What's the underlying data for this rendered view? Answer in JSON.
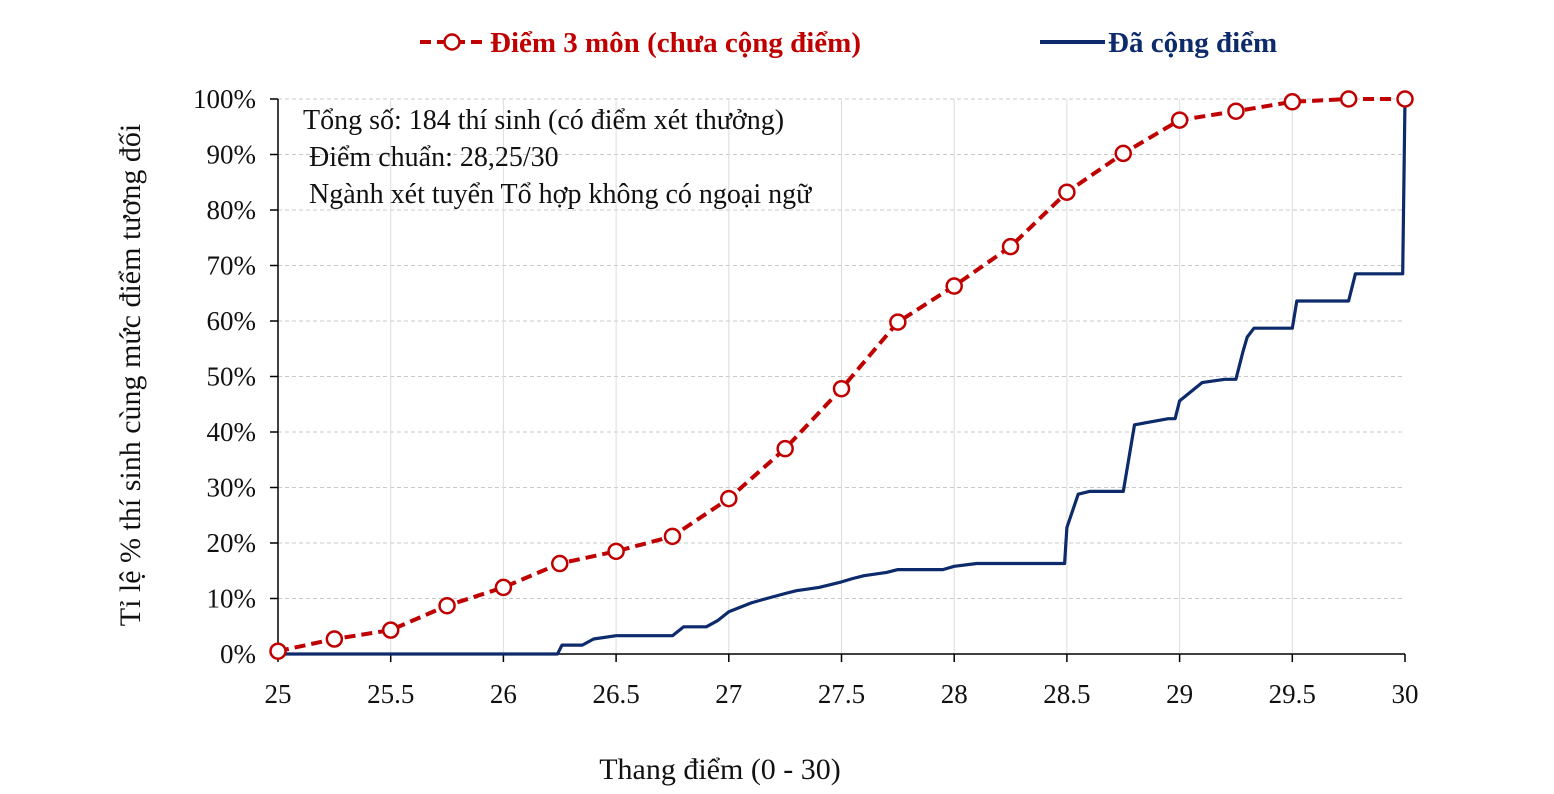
{
  "chart_data": {
    "type": "line",
    "title": "",
    "xlabel": "Thang điểm (0 - 30)",
    "ylabel": "Tỉ lệ % thí sinh cùng mức điểm tương đối",
    "xlim": [
      25,
      30
    ],
    "ylim": [
      0,
      100
    ],
    "x_ticks": [
      "25",
      "25.5",
      "26",
      "26.5",
      "27",
      "27.5",
      "28",
      "28.5",
      "29",
      "29.5",
      "30"
    ],
    "y_ticks": [
      "0%",
      "10%",
      "20%",
      "30%",
      "40%",
      "50%",
      "60%",
      "70%",
      "80%",
      "90%",
      "100%"
    ],
    "grid": "horizontal dashed",
    "legend_position": "top",
    "annotations": [
      "Tổng số: 184 thí sinh  (có điểm xét thưởng)",
      "Điểm chuẩn: 28,25/30",
      "Ngành xét tuyển Tổ hợp không có ngoại ngữ"
    ],
    "series": [
      {
        "name": "Điểm 3 môn (chưa cộng điểm)",
        "color": "#c00000",
        "style": "dashed line with open circle markers",
        "x": [
          25,
          25.25,
          25.5,
          25.75,
          26,
          26.25,
          26.5,
          26.75,
          27,
          27.25,
          27.5,
          27.75,
          28,
          28.25,
          28.5,
          28.75,
          29,
          29.25,
          29.5,
          29.75,
          30
        ],
        "y": [
          0.5,
          2.7,
          4.3,
          8.7,
          12.0,
          16.3,
          18.5,
          21.2,
          28.0,
          37.0,
          47.8,
          59.8,
          66.3,
          73.4,
          83.2,
          90.2,
          96.2,
          97.8,
          99.5,
          100,
          100
        ]
      },
      {
        "name": "Đã cộng điểm",
        "color": "#0d2a6b",
        "style": "solid step line",
        "x": [
          25,
          26.24,
          26.26,
          26.35,
          26.4,
          26.5,
          26.75,
          26.8,
          26.9,
          26.95,
          27.0,
          27.1,
          27.15,
          27.25,
          27.3,
          27.4,
          27.5,
          27.55,
          27.6,
          27.7,
          27.75,
          27.95,
          28.0,
          28.1,
          28.49,
          28.5,
          28.55,
          28.6,
          28.75,
          28.8,
          28.95,
          28.98,
          29.0,
          29.1,
          29.2,
          29.25,
          29.28,
          29.3,
          29.33,
          29.5,
          29.52,
          29.75,
          29.78,
          29.85,
          29.99,
          30.0
        ],
        "y": [
          0,
          0,
          1.6,
          1.6,
          2.7,
          3.3,
          3.3,
          4.9,
          4.9,
          6.0,
          7.6,
          9.2,
          9.8,
          10.9,
          11.4,
          12.0,
          13.0,
          13.6,
          14.1,
          14.7,
          15.2,
          15.2,
          15.8,
          16.3,
          16.3,
          22.8,
          28.8,
          29.3,
          29.3,
          41.3,
          42.4,
          42.4,
          45.6,
          48.9,
          49.5,
          49.5,
          54.3,
          57.1,
          58.7,
          58.7,
          63.6,
          63.6,
          68.5,
          68.5,
          68.5,
          100
        ]
      }
    ]
  }
}
